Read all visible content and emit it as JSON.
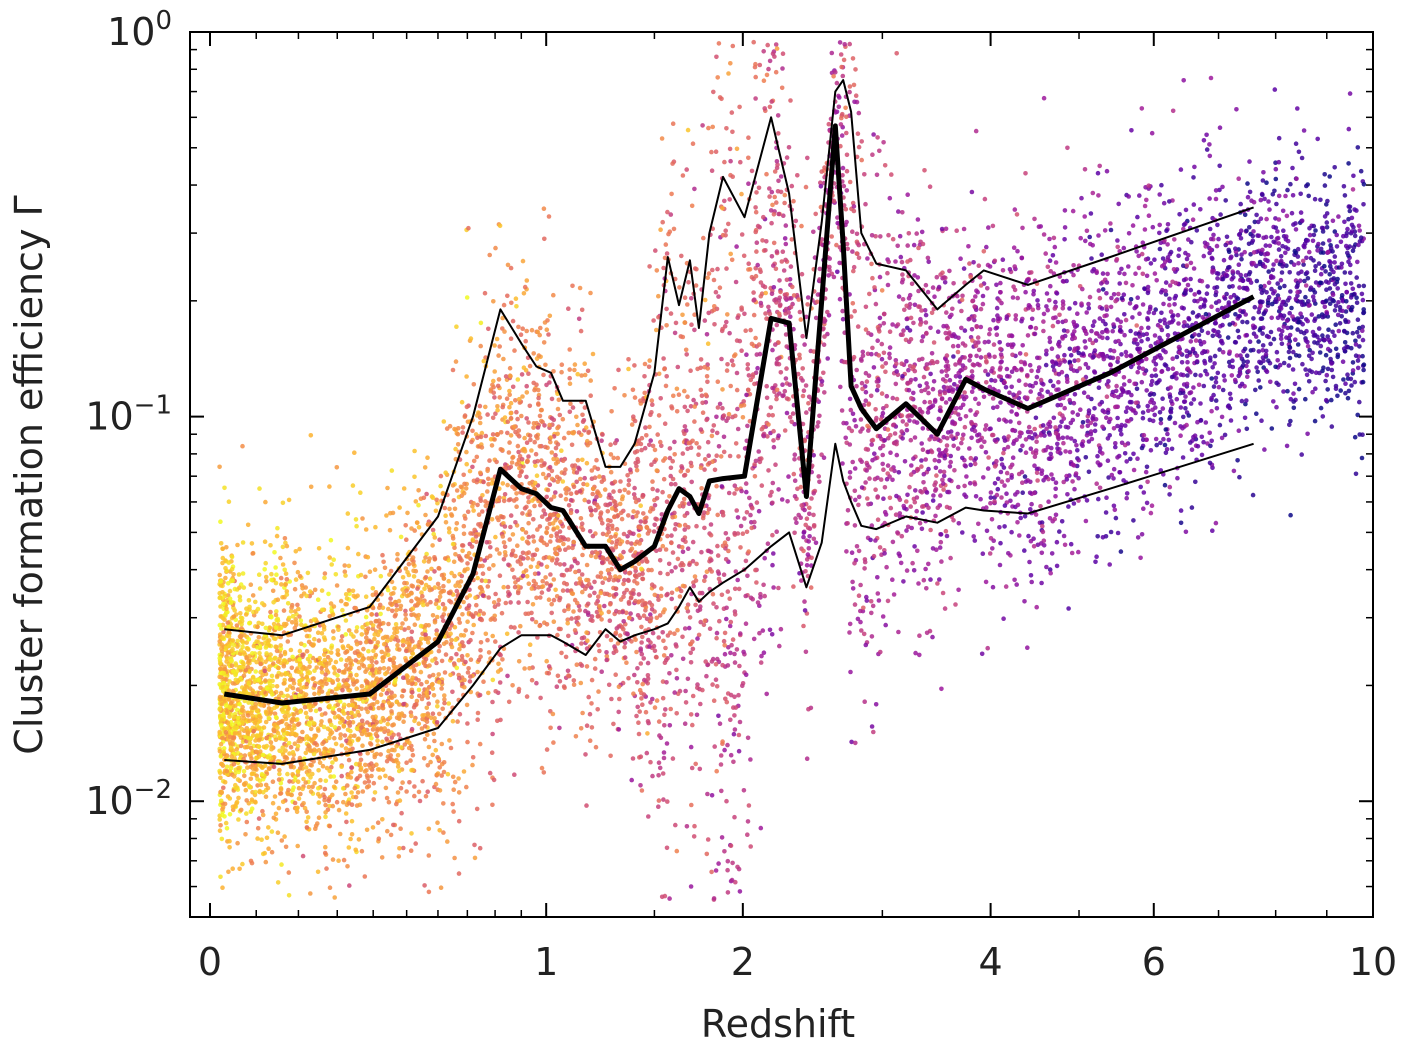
{
  "chart_data": {
    "type": "scatter",
    "xlabel": "Redshift",
    "ylabel": "Cluster formation efficiency Γ",
    "x_scale": "log(1+z)",
    "y_scale": "log",
    "xlim": [
      0,
      10
    ],
    "ylim": [
      0.005,
      1
    ],
    "x_ticks": [
      {
        "value": 0,
        "label": "0"
      },
      {
        "value": 1,
        "label": "1"
      },
      {
        "value": 2,
        "label": "2"
      },
      {
        "value": 4,
        "label": "4"
      },
      {
        "value": 6,
        "label": "6"
      },
      {
        "value": 10,
        "label": "10"
      }
    ],
    "y_ticks": [
      {
        "value": 0.01,
        "base": "10",
        "exp": "−2"
      },
      {
        "value": 0.1,
        "base": "10",
        "exp": "−1"
      },
      {
        "value": 1,
        "base": "10",
        "exp": "0"
      }
    ],
    "grid": false,
    "colormap": [
      "#f0f921",
      "#fdb42f",
      "#ed7953",
      "#cc4778",
      "#9c179e",
      "#5c01a6",
      "#0d0887"
    ],
    "lines": [
      {
        "role": "upper",
        "x": [
          0.03,
          0.16,
          0.39,
          0.6,
          0.72,
          0.82,
          0.9,
          0.96,
          1.02,
          1.07,
          1.17,
          1.26,
          1.33,
          1.4,
          1.5,
          1.57,
          1.63,
          1.69,
          1.74,
          1.8,
          1.88,
          2.01,
          2.18,
          2.3,
          2.42,
          2.53,
          2.63,
          2.69,
          2.75,
          2.83,
          2.95,
          3.2,
          3.48,
          3.75,
          3.93,
          4.4,
          5.4,
          7.6
        ],
        "y": [
          0.028,
          0.027,
          0.032,
          0.055,
          0.1,
          0.19,
          0.155,
          0.135,
          0.13,
          0.11,
          0.11,
          0.074,
          0.074,
          0.085,
          0.13,
          0.26,
          0.195,
          0.255,
          0.17,
          0.3,
          0.42,
          0.33,
          0.6,
          0.38,
          0.16,
          0.32,
          0.7,
          0.75,
          0.62,
          0.3,
          0.25,
          0.24,
          0.19,
          0.22,
          0.24,
          0.22,
          0.26,
          0.35
        ]
      },
      {
        "role": "median",
        "x": [
          0.03,
          0.16,
          0.39,
          0.6,
          0.72,
          0.82,
          0.9,
          0.96,
          1.02,
          1.07,
          1.17,
          1.26,
          1.33,
          1.4,
          1.5,
          1.57,
          1.63,
          1.69,
          1.74,
          1.8,
          1.88,
          2.01,
          2.18,
          2.3,
          2.42,
          2.53,
          2.63,
          2.69,
          2.75,
          2.83,
          2.95,
          3.2,
          3.48,
          3.75,
          3.93,
          4.4,
          5.4,
          7.6
        ],
        "y": [
          0.019,
          0.018,
          0.019,
          0.026,
          0.039,
          0.073,
          0.065,
          0.063,
          0.058,
          0.057,
          0.046,
          0.046,
          0.04,
          0.042,
          0.046,
          0.057,
          0.065,
          0.062,
          0.056,
          0.068,
          0.069,
          0.07,
          0.18,
          0.175,
          0.062,
          0.2,
          0.57,
          0.28,
          0.12,
          0.105,
          0.093,
          0.108,
          0.09,
          0.125,
          0.118,
          0.105,
          0.13,
          0.205
        ]
      },
      {
        "role": "lower",
        "x": [
          0.03,
          0.16,
          0.39,
          0.6,
          0.72,
          0.82,
          0.9,
          0.96,
          1.02,
          1.07,
          1.17,
          1.26,
          1.33,
          1.4,
          1.5,
          1.57,
          1.63,
          1.69,
          1.74,
          1.8,
          1.88,
          2.01,
          2.18,
          2.3,
          2.42,
          2.53,
          2.63,
          2.69,
          2.75,
          2.83,
          2.95,
          3.2,
          3.48,
          3.75,
          3.93,
          4.4,
          5.4,
          7.6
        ],
        "y": [
          0.0128,
          0.0125,
          0.0136,
          0.0155,
          0.02,
          0.025,
          0.027,
          0.027,
          0.027,
          0.026,
          0.024,
          0.028,
          0.026,
          0.027,
          0.028,
          0.029,
          0.032,
          0.036,
          0.033,
          0.035,
          0.037,
          0.04,
          0.046,
          0.05,
          0.036,
          0.047,
          0.085,
          0.068,
          0.06,
          0.052,
          0.051,
          0.055,
          0.053,
          0.058,
          0.057,
          0.056,
          0.065,
          0.085
        ]
      }
    ]
  }
}
